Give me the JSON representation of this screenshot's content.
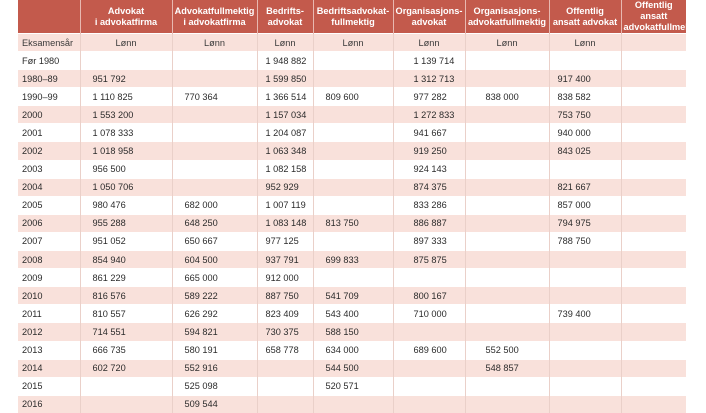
{
  "table": {
    "headers": [
      "",
      "Advokat\ni advokatfirma",
      "Advokatfullmektig\ni advokatfirma",
      "Bedrifts-\nadvokat",
      "Bedriftsadvokat-\nfullmektig",
      "Organisasjons-\nadvokat",
      "Organisasjons-\nadvokatfullmektig",
      "Offentlig\nansatt advokat",
      "Offentlig ansatt\nadvokatfullmektig"
    ],
    "subheaders": [
      "Eksamensår",
      "Lønn",
      "Lønn",
      "Lønn",
      "Lønn",
      "Lønn",
      "Lønn",
      "Lønn",
      ""
    ],
    "rows": [
      [
        "Før 1980",
        "",
        "",
        "1 948 882",
        "",
        "1 139 714",
        "",
        "",
        ""
      ],
      [
        "1980–89",
        "951 792",
        "",
        "1 599 850",
        "",
        "1 312 713",
        "",
        "917 400",
        ""
      ],
      [
        "1990–99",
        "1 110 825",
        "770 364",
        "1 366 514",
        "809 600",
        "977 282",
        "838 000",
        "838 582",
        ""
      ],
      [
        "2000",
        "1 553 200",
        "",
        "1 157 034",
        "",
        "1 272 833",
        "",
        "753 750",
        ""
      ],
      [
        "2001",
        "1 078 333",
        "",
        "1 204 087",
        "",
        "941 667",
        "",
        "940 000",
        ""
      ],
      [
        "2002",
        "1 018 958",
        "",
        "1 063 348",
        "",
        "919 250",
        "",
        "843 025",
        ""
      ],
      [
        "2003",
        "956 500",
        "",
        "1 082 158",
        "",
        "924 143",
        "",
        "",
        ""
      ],
      [
        "2004",
        "1 050 706",
        "",
        "952 929",
        "",
        "874 375",
        "",
        "821 667",
        ""
      ],
      [
        "2005",
        "980 476",
        "682 000",
        "1 007 119",
        "",
        "833 286",
        "",
        "857 000",
        ""
      ],
      [
        "2006",
        "955 288",
        "648 250",
        "1 083 148",
        "813 750",
        "886 887",
        "",
        "794 975",
        ""
      ],
      [
        "2007",
        "951 052",
        "650 667",
        "977 125",
        "",
        "897 333",
        "",
        "788 750",
        ""
      ],
      [
        "2008",
        "854 940",
        "604 500",
        "937 791",
        "699 833",
        "875 875",
        "",
        "",
        ""
      ],
      [
        "2009",
        "861 229",
        "665 000",
        "912 000",
        "",
        "",
        "",
        "",
        ""
      ],
      [
        "2010",
        "816 576",
        "589 222",
        "887 750",
        "541 709",
        "800 167",
        "",
        "",
        ""
      ],
      [
        "2011",
        "810 557",
        "626 292",
        "823 409",
        "543 400",
        "710 000",
        "",
        "739 400",
        ""
      ],
      [
        "2012",
        "714 551",
        "594 821",
        "730 375",
        "588 150",
        "",
        "",
        "",
        ""
      ],
      [
        "2013",
        "666 735",
        "580 191",
        "658 778",
        "634 000",
        "689 600",
        "552 500",
        "",
        ""
      ],
      [
        "2014",
        "602 720",
        "552 916",
        "",
        "544 500",
        "",
        "548 857",
        "",
        ""
      ],
      [
        "2015",
        "",
        "525 098",
        "",
        "520 571",
        "",
        "",
        "",
        ""
      ],
      [
        "2016",
        "",
        "509 544",
        "",
        "",
        "",
        "",
        "",
        ""
      ]
    ]
  },
  "colors": {
    "header_bg": "#c35a4c",
    "header_text": "#ffffff",
    "stripe": "#f9e1db"
  }
}
